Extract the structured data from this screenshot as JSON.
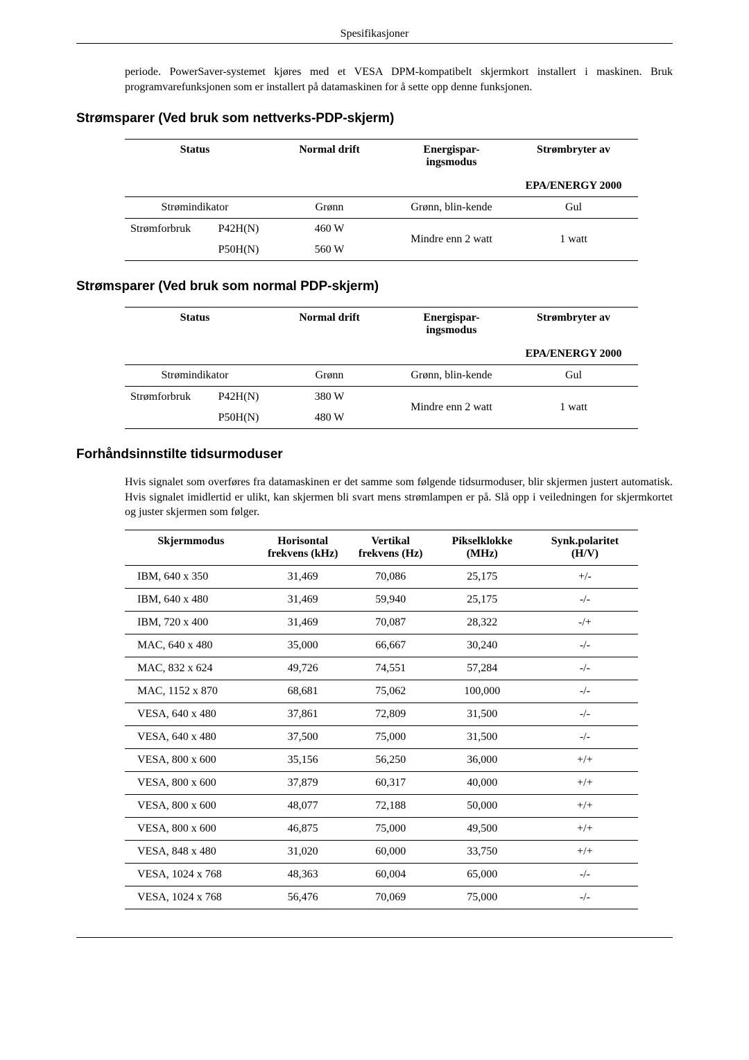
{
  "header": "Spesifikasjoner",
  "intro": "periode. PowerSaver-systemet kjøres med et VESA DPM-kompatibelt skjermkort installert i maskinen. Bruk programvarefunksjonen som er installert på datamaskinen for å sette opp denne funksjonen.",
  "section1": {
    "title": "Strømsparer (Ved bruk som nettverks-PDP-skjerm)",
    "headers": {
      "status": "Status",
      "normal": "Normal drift",
      "energy": "Energispar-ingsmodus",
      "off": "Strømbryter av",
      "epa": "EPA/ENERGY 2000"
    },
    "row1": {
      "label": "Strømindikator",
      "normal": "Grønn",
      "energy": "Grønn, blin-kende",
      "off": "Gul"
    },
    "row2a": {
      "label": "Strømforbruk",
      "model": "P42H(N)",
      "normal": "460 W",
      "energy": "Mindre enn 2 watt",
      "off": "1 watt"
    },
    "row2b": {
      "model": "P50H(N)",
      "normal": "560 W"
    }
  },
  "section2": {
    "title": "Strømsparer (Ved bruk som normal PDP-skjerm)",
    "row1": {
      "label": "Strømindikator",
      "normal": "Grønn",
      "energy": "Grønn, blin-kende",
      "off": "Gul"
    },
    "row2a": {
      "label": "Strømforbruk",
      "model": "P42H(N)",
      "normal": "380 W",
      "energy": "Mindre enn 2 watt",
      "off": "1 watt"
    },
    "row2b": {
      "model": "P50H(N)",
      "normal": "480 W"
    }
  },
  "section3": {
    "title": "Forhåndsinnstilte tidsurmoduser",
    "desc": "Hvis signalet som overføres fra datamaskinen er det samme som følgende tidsurmoduser, blir skjermen justert automatisk. Hvis signalet imidlertid er ulikt, kan skjermen bli svart mens strømlampen er på. Slå opp i veiledningen for skjermkortet og juster skjermen som følger.",
    "headers": {
      "mode": "Skjermmodus",
      "hfreq": "Horisontal frekvens (kHz)",
      "vfreq": "Vertikal frekvens (Hz)",
      "pixel": "Pikselklokke (MHz)",
      "sync": "Synk.polaritet (H/V)"
    },
    "rows": [
      {
        "mode": "IBM, 640 x 350",
        "h": "31,469",
        "v": "70,086",
        "p": "25,175",
        "s": "+/-"
      },
      {
        "mode": "IBM, 640 x 480",
        "h": "31,469",
        "v": "59,940",
        "p": "25,175",
        "s": "-/-"
      },
      {
        "mode": "IBM, 720 x 400",
        "h": "31,469",
        "v": "70,087",
        "p": "28,322",
        "s": "-/+"
      },
      {
        "mode": "MAC, 640 x 480",
        "h": "35,000",
        "v": "66,667",
        "p": "30,240",
        "s": "-/-"
      },
      {
        "mode": "MAC, 832 x 624",
        "h": "49,726",
        "v": "74,551",
        "p": "57,284",
        "s": "-/-"
      },
      {
        "mode": "MAC, 1152 x 870",
        "h": "68,681",
        "v": "75,062",
        "p": "100,000",
        "s": "-/-"
      },
      {
        "mode": "VESA, 640 x 480",
        "h": "37,861",
        "v": "72,809",
        "p": "31,500",
        "s": "-/-"
      },
      {
        "mode": "VESA, 640 x 480",
        "h": "37,500",
        "v": "75,000",
        "p": "31,500",
        "s": "-/-"
      },
      {
        "mode": "VESA, 800 x 600",
        "h": "35,156",
        "v": "56,250",
        "p": "36,000",
        "s": "+/+"
      },
      {
        "mode": "VESA, 800 x 600",
        "h": "37,879",
        "v": "60,317",
        "p": "40,000",
        "s": "+/+"
      },
      {
        "mode": "VESA, 800 x 600",
        "h": "48,077",
        "v": "72,188",
        "p": "50,000",
        "s": "+/+"
      },
      {
        "mode": "VESA, 800 x 600",
        "h": "46,875",
        "v": "75,000",
        "p": "49,500",
        "s": "+/+"
      },
      {
        "mode": "VESA, 848 x 480",
        "h": "31,020",
        "v": "60,000",
        "p": "33,750",
        "s": "+/+"
      },
      {
        "mode": "VESA, 1024 x 768",
        "h": "48,363",
        "v": "60,004",
        "p": "65,000",
        "s": "-/-"
      },
      {
        "mode": "VESA, 1024 x 768",
        "h": "56,476",
        "v": "70,069",
        "p": "75,000",
        "s": "-/-"
      }
    ]
  }
}
